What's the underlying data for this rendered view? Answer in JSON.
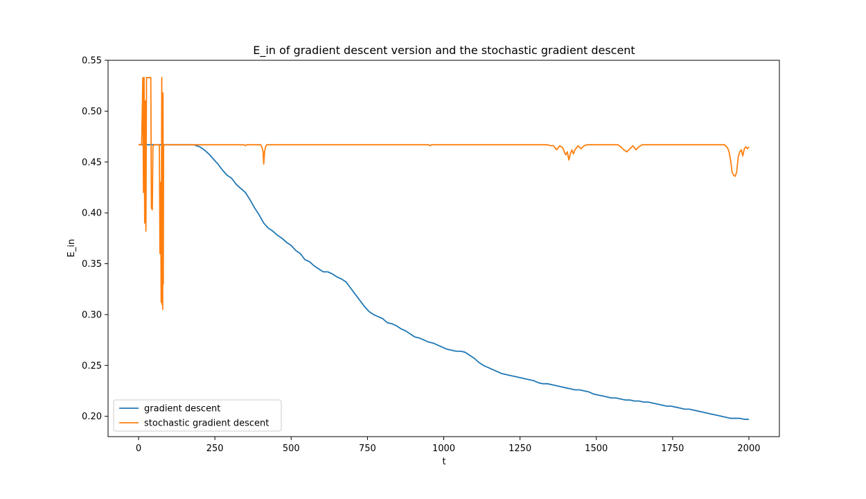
{
  "chart_data": {
    "type": "line",
    "title": "E_in of gradient descent version and the stochastic gradient descent",
    "xlabel": "t",
    "ylabel": "E_in",
    "xlim": [
      -100,
      2100
    ],
    "ylim": [
      0.18,
      0.55
    ],
    "xticks": [
      0,
      250,
      500,
      750,
      1000,
      1250,
      1500,
      1750,
      2000
    ],
    "yticks": [
      0.2,
      0.25,
      0.3,
      0.35,
      0.4,
      0.45,
      0.5,
      0.55
    ],
    "xtick_labels": [
      "0",
      "250",
      "500",
      "750",
      "1000",
      "1250",
      "1500",
      "1750",
      "2000"
    ],
    "ytick_labels": [
      "0.20",
      "0.25",
      "0.30",
      "0.35",
      "0.40",
      "0.45",
      "0.50",
      "0.55"
    ],
    "grid": false,
    "legend_position": "lower-left",
    "series": [
      {
        "name": "gradient descent",
        "color": "#1f77b4",
        "x": [
          0,
          180,
          200,
          215,
          230,
          245,
          260,
          275,
          290,
          305,
          320,
          335,
          350,
          365,
          380,
          395,
          410,
          425,
          440,
          455,
          470,
          485,
          500,
          515,
          530,
          545,
          560,
          575,
          590,
          605,
          620,
          635,
          650,
          665,
          680,
          695,
          710,
          725,
          740,
          755,
          770,
          785,
          800,
          815,
          830,
          845,
          860,
          875,
          890,
          905,
          920,
          935,
          950,
          965,
          980,
          995,
          1010,
          1025,
          1040,
          1055,
          1070,
          1085,
          1100,
          1115,
          1130,
          1145,
          1160,
          1175,
          1190,
          1205,
          1220,
          1235,
          1250,
          1265,
          1280,
          1295,
          1310,
          1325,
          1340,
          1355,
          1370,
          1385,
          1400,
          1415,
          1430,
          1445,
          1460,
          1475,
          1490,
          1505,
          1520,
          1535,
          1550,
          1565,
          1580,
          1595,
          1610,
          1625,
          1640,
          1655,
          1670,
          1685,
          1700,
          1715,
          1730,
          1745,
          1760,
          1775,
          1790,
          1805,
          1820,
          1835,
          1850,
          1865,
          1880,
          1895,
          1910,
          1925,
          1940,
          1955,
          1970,
          1985,
          2000
        ],
        "values": [
          0.467,
          0.467,
          0.465,
          0.462,
          0.458,
          0.453,
          0.448,
          0.442,
          0.437,
          0.434,
          0.428,
          0.424,
          0.42,
          0.413,
          0.405,
          0.398,
          0.39,
          0.385,
          0.382,
          0.378,
          0.375,
          0.371,
          0.368,
          0.363,
          0.36,
          0.354,
          0.352,
          0.348,
          0.345,
          0.342,
          0.342,
          0.34,
          0.337,
          0.335,
          0.332,
          0.326,
          0.32,
          0.314,
          0.308,
          0.303,
          0.3,
          0.298,
          0.296,
          0.292,
          0.291,
          0.289,
          0.286,
          0.284,
          0.281,
          0.278,
          0.277,
          0.275,
          0.273,
          0.272,
          0.27,
          0.268,
          0.266,
          0.265,
          0.264,
          0.264,
          0.263,
          0.26,
          0.257,
          0.253,
          0.25,
          0.248,
          0.246,
          0.244,
          0.242,
          0.241,
          0.24,
          0.239,
          0.238,
          0.237,
          0.236,
          0.235,
          0.233,
          0.232,
          0.232,
          0.231,
          0.23,
          0.229,
          0.228,
          0.227,
          0.226,
          0.226,
          0.225,
          0.224,
          0.222,
          0.221,
          0.22,
          0.219,
          0.218,
          0.218,
          0.217,
          0.216,
          0.216,
          0.215,
          0.215,
          0.214,
          0.214,
          0.213,
          0.212,
          0.211,
          0.21,
          0.21,
          0.209,
          0.208,
          0.207,
          0.207,
          0.206,
          0.205,
          0.204,
          0.203,
          0.202,
          0.201,
          0.2,
          0.199,
          0.198,
          0.198,
          0.198,
          0.197,
          0.197
        ]
      },
      {
        "name": "stochastic gradient descent",
        "color": "#ff7f0e",
        "x": [
          0,
          10,
          14,
          16,
          18,
          20,
          22,
          24,
          26,
          30,
          35,
          40,
          42,
          45,
          47,
          50,
          60,
          68,
          70,
          72,
          74,
          76,
          77,
          78,
          79,
          80,
          81,
          82,
          83,
          84,
          86,
          90,
          100,
          200,
          300,
          345,
          350,
          355,
          360,
          400,
          405,
          408,
          410,
          413,
          416,
          420,
          425,
          430,
          500,
          700,
          950,
          955,
          960,
          1000,
          1200,
          1340,
          1350,
          1360,
          1370,
          1380,
          1390,
          1395,
          1400,
          1405,
          1410,
          1415,
          1420,
          1425,
          1430,
          1440,
          1450,
          1460,
          1470,
          1480,
          1500,
          1570,
          1580,
          1590,
          1600,
          1610,
          1620,
          1630,
          1640,
          1650,
          1660,
          1670,
          1700,
          1800,
          1900,
          1920,
          1930,
          1935,
          1940,
          1945,
          1950,
          1955,
          1960,
          1965,
          1970,
          1975,
          1980,
          1985,
          1990,
          1995,
          2000
        ],
        "values": [
          0.467,
          0.467,
          0.533,
          0.42,
          0.533,
          0.39,
          0.51,
          0.382,
          0.533,
          0.533,
          0.533,
          0.533,
          0.405,
          0.403,
          0.465,
          0.467,
          0.467,
          0.467,
          0.36,
          0.43,
          0.312,
          0.533,
          0.31,
          0.33,
          0.305,
          0.518,
          0.33,
          0.465,
          0.467,
          0.467,
          0.467,
          0.467,
          0.467,
          0.467,
          0.467,
          0.467,
          0.466,
          0.467,
          0.467,
          0.467,
          0.464,
          0.46,
          0.448,
          0.46,
          0.465,
          0.467,
          0.467,
          0.467,
          0.467,
          0.467,
          0.467,
          0.466,
          0.467,
          0.467,
          0.467,
          0.467,
          0.466,
          0.466,
          0.462,
          0.466,
          0.464,
          0.46,
          0.457,
          0.46,
          0.452,
          0.458,
          0.462,
          0.458,
          0.462,
          0.466,
          0.463,
          0.466,
          0.467,
          0.467,
          0.467,
          0.467,
          0.465,
          0.462,
          0.46,
          0.463,
          0.466,
          0.462,
          0.465,
          0.467,
          0.467,
          0.467,
          0.467,
          0.467,
          0.467,
          0.467,
          0.464,
          0.46,
          0.452,
          0.44,
          0.437,
          0.436,
          0.44,
          0.455,
          0.46,
          0.462,
          0.456,
          0.463,
          0.465,
          0.463,
          0.465
        ]
      }
    ]
  }
}
